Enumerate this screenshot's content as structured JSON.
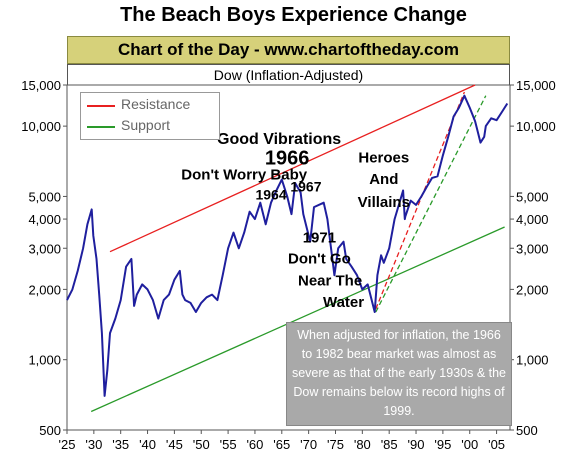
{
  "header": {
    "title": "The Beach Boys Experience Change",
    "banner": "Chart of the Day - www.chartoftheday.com"
  },
  "note": "When adjusted for inflation, the 1966 to 1982 bear market was almost as severe as that of the early 1930s & the Dow remains below its record highs of 1999.",
  "chart_data": {
    "type": "line",
    "title": "Dow (Inflation-Adjusted)",
    "xlabel": "",
    "ylabel": "",
    "y_scale": "log",
    "xlim": [
      1925,
      2007.5
    ],
    "ylim": [
      500,
      15000
    ],
    "grid": false,
    "legend_position": "top-left",
    "x_tick_labels": [
      "'25",
      "'30",
      "'35",
      "'40",
      "'45",
      "'50",
      "'55",
      "'60",
      "'65",
      "'70",
      "'75",
      "'80",
      "'85",
      "'90",
      "'95",
      "'00",
      "'05"
    ],
    "x_ticks": [
      1925,
      1930,
      1935,
      1940,
      1945,
      1950,
      1955,
      1960,
      1965,
      1970,
      1975,
      1980,
      1985,
      1990,
      1995,
      2000,
      2005
    ],
    "y_ticks": [
      500,
      1000,
      2000,
      3000,
      4000,
      5000,
      10000,
      15000
    ],
    "y_tick_labels": [
      "500",
      "1,000",
      "2,000",
      "3,000",
      "4,000",
      "5,000",
      "10,000",
      "15,000"
    ],
    "series": [
      {
        "name": "",
        "color": "#1f1f9e",
        "x": [
          1925,
          1926,
          1927,
          1928,
          1928.8,
          1929.6,
          1929.9,
          1930.5,
          1931,
          1931.5,
          1932,
          1932.5,
          1933,
          1934,
          1935,
          1936,
          1937,
          1937.5,
          1938,
          1939,
          1940,
          1941,
          1942,
          1943,
          1944,
          1945,
          1946,
          1946.5,
          1947,
          1948,
          1949,
          1950,
          1951,
          1952,
          1953,
          1954,
          1955,
          1956,
          1957,
          1958,
          1959,
          1960,
          1961,
          1962,
          1963,
          1964,
          1965,
          1966,
          1966.8,
          1967.5,
          1968.5,
          1969,
          1970.3,
          1971,
          1972.8,
          1973.5,
          1974.8,
          1975.5,
          1976.5,
          1977,
          1978,
          1979,
          1980,
          1981,
          1982.3,
          1982.8,
          1983.5,
          1984,
          1985,
          1986,
          1987.6,
          1987.9,
          1988,
          1989,
          1990,
          1991,
          1992,
          1993,
          1994,
          1995,
          1996,
          1997,
          1998,
          1999,
          2000,
          2001,
          2002,
          2002.7,
          2003,
          2004,
          2005,
          2006,
          2007
        ],
        "y": [
          1800,
          2000,
          2400,
          3000,
          3800,
          4400,
          3400,
          2700,
          1900,
          1300,
          700,
          900,
          1300,
          1500,
          1800,
          2500,
          2700,
          1700,
          1900,
          2100,
          2000,
          1800,
          1500,
          1800,
          1900,
          2200,
          2400,
          1900,
          1800,
          1750,
          1600,
          1750,
          1850,
          1900,
          1800,
          2300,
          3000,
          3500,
          3000,
          3500,
          4300,
          4000,
          4700,
          3800,
          4700,
          5300,
          5900,
          5000,
          4200,
          5700,
          5200,
          4200,
          3200,
          4500,
          4700,
          4000,
          2300,
          3000,
          3200,
          2700,
          2500,
          2300,
          2000,
          2100,
          1600,
          2300,
          2800,
          2600,
          3000,
          4000,
          5300,
          4000,
          4100,
          4800,
          4600,
          5000,
          5500,
          6000,
          6100,
          7500,
          9000,
          11000,
          12000,
          13500,
          12000,
          10500,
          8500,
          9000,
          10000,
          10800,
          10600,
          11500,
          12500
        ]
      },
      {
        "name": "Resistance",
        "color": "#e82020",
        "x": [
          1933,
          2001
        ],
        "y": [
          2900,
          15000
        ]
      },
      {
        "name": "Support",
        "color": "#2a9a2a",
        "x": [
          1929.5,
          2006.5
        ],
        "y": [
          600,
          3700
        ]
      },
      {
        "name": "",
        "color": "#e82020",
        "dashed": true,
        "x": [
          1982.5,
          1999
        ],
        "y": [
          1650,
          14000
        ]
      },
      {
        "name": "",
        "color": "#2a9a2a",
        "dashed": true,
        "x": [
          1982.5,
          2003
        ],
        "y": [
          1600,
          13500
        ]
      }
    ],
    "annotations": [
      {
        "text": "Good Vibrations",
        "x": 1964.5,
        "y": 8400,
        "size": 16
      },
      {
        "text": "1966",
        "x": 1966,
        "y": 6850,
        "size": 20
      },
      {
        "text": "Don't Worry Baby",
        "x": 1958,
        "y": 5900,
        "size": 15
      },
      {
        "text": "1964",
        "x": 1963,
        "y": 4850,
        "size": 14
      },
      {
        "text": "1967",
        "x": 1969.5,
        "y": 5250,
        "size": 14
      },
      {
        "text": "Heroes",
        "x": 1984,
        "y": 7000,
        "size": 15
      },
      {
        "text": "And",
        "x": 1984,
        "y": 5650,
        "size": 15
      },
      {
        "text": "Villains",
        "x": 1984,
        "y": 4500,
        "size": 15
      },
      {
        "text": "1971",
        "x": 1972,
        "y": 3170,
        "size": 15
      },
      {
        "text": "Don't Go",
        "x": 1972,
        "y": 2580,
        "size": 15
      },
      {
        "text": "Near The",
        "x": 1974,
        "y": 2080,
        "size": 15
      },
      {
        "text": "Water",
        "x": 1976.5,
        "y": 1680,
        "size": 15
      }
    ]
  }
}
